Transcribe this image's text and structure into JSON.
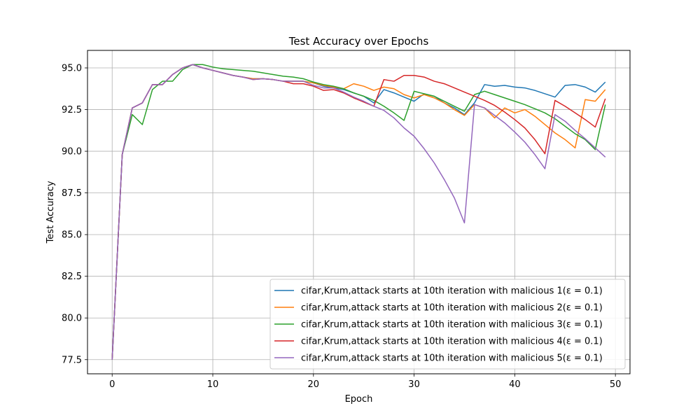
{
  "chart_data": {
    "type": "line",
    "title": "Test Accuracy over Epochs",
    "xlabel": "Epoch",
    "ylabel": "Test Accuracy",
    "xlim": [
      -2.45,
      51.45
    ],
    "ylim": [
      76.65,
      96.05
    ],
    "x_ticks": [
      0,
      10,
      20,
      30,
      40,
      50
    ],
    "y_ticks": [
      77.5,
      80.0,
      82.5,
      85.0,
      87.5,
      90.0,
      92.5,
      95.0
    ],
    "y_tick_labels": [
      "77.5",
      "80.0",
      "82.5",
      "85.0",
      "87.5",
      "90.0",
      "92.5",
      "95.0"
    ],
    "x_tick_labels": [
      "0",
      "10",
      "20",
      "30",
      "40",
      "50"
    ],
    "grid": true,
    "legend_position": "lower-right",
    "epsilon_suffix": "(ε = 0.1)",
    "x": [
      0,
      1,
      2,
      3,
      4,
      5,
      6,
      7,
      8,
      9,
      10,
      11,
      12,
      13,
      14,
      15,
      16,
      17,
      18,
      19,
      20,
      21,
      22,
      23,
      24,
      25,
      26,
      27,
      28,
      29,
      30,
      31,
      32,
      33,
      34,
      35,
      36,
      37,
      38,
      39,
      40,
      41,
      42,
      43,
      44,
      45,
      46,
      47,
      48,
      49
    ],
    "series": [
      {
        "name": "cifar,Krum,attack starts at 10th iteration with malicious 1",
        "color": "#1f77b4",
        "values": [
          77.5,
          89.8,
          92.6,
          92.9,
          94.0,
          94.0,
          94.6,
          95.0,
          95.2,
          95.0,
          94.85,
          94.7,
          94.55,
          94.45,
          94.35,
          94.35,
          94.3,
          94.2,
          94.2,
          94.2,
          94.1,
          93.9,
          93.8,
          93.7,
          93.5,
          93.3,
          92.9,
          93.7,
          93.5,
          93.25,
          93.0,
          93.45,
          93.3,
          92.9,
          92.6,
          92.2,
          92.9,
          94.0,
          93.9,
          93.95,
          93.85,
          93.8,
          93.65,
          93.45,
          93.25,
          93.95,
          94.0,
          93.85,
          93.55,
          94.15
        ]
      },
      {
        "name": "cifar,Krum,attack starts at 10th iteration with malicious 2",
        "color": "#ff7f0e",
        "values": [
          77.5,
          89.8,
          92.6,
          92.9,
          94.0,
          94.0,
          94.6,
          95.0,
          95.2,
          95.0,
          94.85,
          94.7,
          94.55,
          94.45,
          94.35,
          94.35,
          94.3,
          94.2,
          94.2,
          94.2,
          94.1,
          93.95,
          93.85,
          93.75,
          94.05,
          93.9,
          93.65,
          93.85,
          93.75,
          93.4,
          93.2,
          93.4,
          93.2,
          92.9,
          92.5,
          92.15,
          92.8,
          92.6,
          92.0,
          92.6,
          92.3,
          92.5,
          92.1,
          91.6,
          91.1,
          90.7,
          90.2,
          93.1,
          93.0,
          93.7
        ]
      },
      {
        "name": "cifar,Krum,attack starts at 10th iteration with malicious 3",
        "color": "#2ca02c",
        "values": [
          77.5,
          89.8,
          92.2,
          91.6,
          93.7,
          94.2,
          94.2,
          94.9,
          95.2,
          95.2,
          95.05,
          94.95,
          94.9,
          94.85,
          94.8,
          94.7,
          94.6,
          94.5,
          94.45,
          94.35,
          94.15,
          94.0,
          93.9,
          93.75,
          93.5,
          93.3,
          93.05,
          92.7,
          92.3,
          91.85,
          93.6,
          93.45,
          93.3,
          93.0,
          92.7,
          92.4,
          93.4,
          93.6,
          93.4,
          93.2,
          93.0,
          92.8,
          92.55,
          92.3,
          91.95,
          91.5,
          91.05,
          90.7,
          90.1,
          92.8
        ]
      },
      {
        "name": "cifar,Krum,attack starts at 10th iteration with malicious 4",
        "color": "#d62728",
        "values": [
          77.5,
          89.8,
          92.6,
          92.9,
          94.0,
          94.0,
          94.6,
          95.0,
          95.2,
          95.0,
          94.85,
          94.7,
          94.55,
          94.45,
          94.3,
          94.35,
          94.3,
          94.2,
          94.05,
          94.05,
          93.9,
          93.65,
          93.7,
          93.5,
          93.2,
          92.95,
          92.7,
          94.3,
          94.2,
          94.55,
          94.55,
          94.45,
          94.2,
          94.05,
          93.8,
          93.55,
          93.3,
          93.05,
          92.75,
          92.35,
          91.9,
          91.4,
          90.7,
          89.85,
          93.05,
          92.7,
          92.3,
          91.9,
          91.45,
          93.15
        ]
      },
      {
        "name": "cifar,Krum,attack starts at 10th iteration with malicious 5",
        "color": "#9467bd",
        "values": [
          77.5,
          89.8,
          92.6,
          92.9,
          94.0,
          94.0,
          94.6,
          95.0,
          95.2,
          95.0,
          94.85,
          94.7,
          94.55,
          94.45,
          94.3,
          94.35,
          94.3,
          94.2,
          94.2,
          94.2,
          93.95,
          93.8,
          93.8,
          93.55,
          93.25,
          93.0,
          92.7,
          92.45,
          92.0,
          91.4,
          90.9,
          90.15,
          89.3,
          88.3,
          87.2,
          85.7,
          92.8,
          92.6,
          92.15,
          91.7,
          91.15,
          90.55,
          89.8,
          88.95,
          92.2,
          91.8,
          91.25,
          90.75,
          90.2,
          89.65
        ]
      }
    ]
  }
}
